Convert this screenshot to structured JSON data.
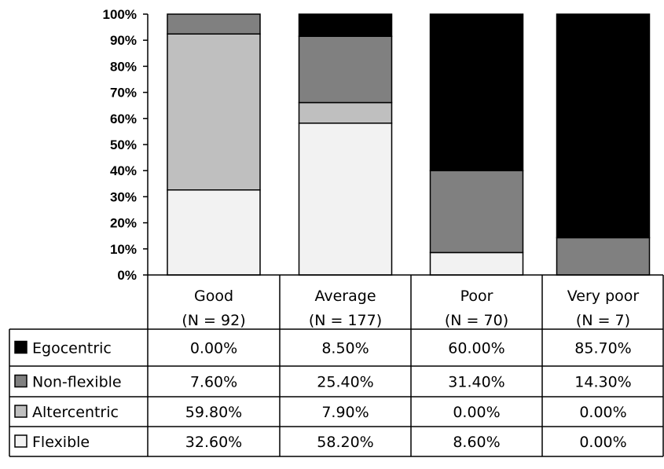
{
  "chart_data": {
    "type": "bar",
    "stacked": true,
    "percent": true,
    "categories": [
      "Good",
      "Average",
      "Poor",
      "Very poor"
    ],
    "category_n": [
      "(N = 92)",
      "(N = 177)",
      "(N = 70)",
      "(N = 7)"
    ],
    "series": [
      {
        "name": "Flexible",
        "values": [
          32.6,
          58.2,
          8.6,
          0.0
        ],
        "labels": [
          "32.60%",
          "58.20%",
          "8.60%",
          "0.00%"
        ],
        "color": "#f2f2f2"
      },
      {
        "name": "Altercentric",
        "values": [
          59.8,
          7.9,
          0.0,
          0.0
        ],
        "labels": [
          "59.80%",
          "7.90%",
          "0.00%",
          "0.00%"
        ],
        "color": "#bfbfbf"
      },
      {
        "name": "Non-flexible",
        "values": [
          7.6,
          25.4,
          31.4,
          14.3
        ],
        "labels": [
          "7.60%",
          "25.40%",
          "31.40%",
          "14.30%"
        ],
        "color": "#808080"
      },
      {
        "name": "Egocentric",
        "values": [
          0.0,
          8.5,
          60.0,
          85.7
        ],
        "labels": [
          "0.00%",
          "8.50%",
          "60.00%",
          "85.70%"
        ],
        "color": "#000000"
      }
    ],
    "table_order": [
      "Egocentric",
      "Non-flexible",
      "Altercentric",
      "Flexible"
    ],
    "yticks": [
      "0%",
      "10%",
      "20%",
      "30%",
      "40%",
      "50%",
      "60%",
      "70%",
      "80%",
      "90%",
      "100%"
    ],
    "ylim": [
      0,
      100
    ],
    "grid": false,
    "legend": "data-table-left",
    "title": "",
    "xlabel": "",
    "ylabel": ""
  }
}
